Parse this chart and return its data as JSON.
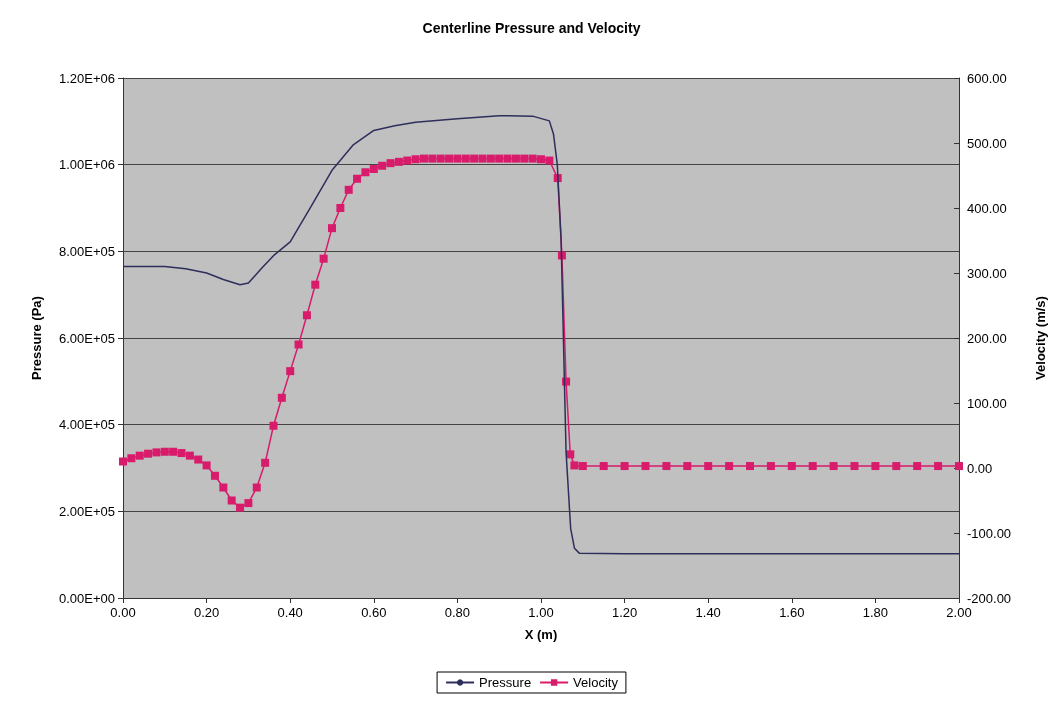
{
  "chart_data": {
    "type": "line",
    "title": "Centerline Pressure and Velocity",
    "xlabel": "X (m)",
    "ylabel": "Pressure (Pa)",
    "y2label": "Velocity (m/s)",
    "xlim": [
      0,
      2
    ],
    "xticks": [
      {
        "value": 0,
        "label": "0.00"
      },
      {
        "value": 0.2,
        "label": "0.20"
      },
      {
        "value": 0.4,
        "label": "0.40"
      },
      {
        "value": 0.6,
        "label": "0.60"
      },
      {
        "value": 0.8,
        "label": "0.80"
      },
      {
        "value": 1,
        "label": "1.00"
      },
      {
        "value": 1.2,
        "label": "1.20"
      },
      {
        "value": 1.4,
        "label": "1.40"
      },
      {
        "value": 1.6,
        "label": "1.60"
      },
      {
        "value": 1.8,
        "label": "1.80"
      },
      {
        "value": 2,
        "label": "2.00"
      }
    ],
    "ylim": [
      0,
      1200000
    ],
    "yticks": [
      {
        "value": 0,
        "label": "0.00E+00"
      },
      {
        "value": 200000,
        "label": "2.00E+05"
      },
      {
        "value": 400000,
        "label": "4.00E+05"
      },
      {
        "value": 600000,
        "label": "6.00E+05"
      },
      {
        "value": 800000,
        "label": "8.00E+05"
      },
      {
        "value": 1000000,
        "label": "1.00E+06"
      },
      {
        "value": 1200000,
        "label": "1.20E+06"
      }
    ],
    "y2lim": [
      -200,
      600
    ],
    "y2ticks": [
      {
        "value": -200,
        "label": "-200.00"
      },
      {
        "value": -100,
        "label": "-100.00"
      },
      {
        "value": 0,
        "label": "0.00"
      },
      {
        "value": 100,
        "label": "100.00"
      },
      {
        "value": 200,
        "label": "200.00"
      },
      {
        "value": 300,
        "label": "300.00"
      },
      {
        "value": 400,
        "label": "400.00"
      },
      {
        "value": 500,
        "label": "500.00"
      },
      {
        "value": 600,
        "label": "600.00"
      }
    ],
    "grid": "y",
    "legend": "bottom",
    "series": [
      {
        "name": "Pressure",
        "color": "#2e2e5c",
        "marker": "none",
        "x": [
          0,
          0.1,
          0.15,
          0.2,
          0.24,
          0.28,
          0.3,
          0.33,
          0.36,
          0.4,
          0.45,
          0.5,
          0.55,
          0.6,
          0.65,
          0.7,
          0.8,
          0.9,
          0.98,
          1.02,
          1.03,
          1.039,
          1.048,
          1.06,
          1.071,
          1.08,
          1.092,
          1.2,
          1.4,
          1.6,
          1.8,
          2
        ],
        "values": [
          765000,
          765000,
          760000,
          750000,
          735000,
          723000,
          727000,
          759000,
          790000,
          822000,
          904000,
          987000,
          1045000,
          1079000,
          1090000,
          1098000,
          1106000,
          1113000,
          1112000,
          1101000,
          1070000,
          1000000,
          830000,
          336000,
          160000,
          115000,
          103000,
          102000,
          102000,
          102000,
          102000,
          102000
        ]
      },
      {
        "name": "Velocity",
        "color": "#d81b6a",
        "marker": "square",
        "axis": "y2",
        "x": [
          0,
          0.02,
          0.04,
          0.06,
          0.08,
          0.1,
          0.12,
          0.14,
          0.16,
          0.18,
          0.2,
          0.22,
          0.24,
          0.26,
          0.28,
          0.3,
          0.32,
          0.34,
          0.36,
          0.38,
          0.4,
          0.42,
          0.44,
          0.46,
          0.48,
          0.5,
          0.52,
          0.54,
          0.56,
          0.58,
          0.6,
          0.62,
          0.64,
          0.66,
          0.68,
          0.7,
          0.72,
          0.74,
          0.76,
          0.78,
          0.8,
          0.82,
          0.84,
          0.86,
          0.88,
          0.9,
          0.92,
          0.94,
          0.96,
          0.98,
          1,
          1.02,
          1.04,
          1.05,
          1.06,
          1.07,
          1.08,
          1.1,
          1.15,
          1.2,
          1.25,
          1.3,
          1.35,
          1.4,
          1.45,
          1.5,
          1.55,
          1.6,
          1.65,
          1.7,
          1.75,
          1.8,
          1.85,
          1.9,
          1.95,
          2
        ],
        "values": [
          10,
          15,
          19,
          22,
          24,
          25,
          25,
          23,
          19,
          13,
          4,
          -12,
          -30,
          -50,
          -61,
          -54,
          -30,
          8,
          65,
          108,
          149,
          190,
          235,
          282,
          322,
          369,
          400,
          428,
          445,
          455,
          460,
          465,
          469,
          471,
          473,
          475,
          476,
          476,
          476,
          476,
          476,
          476,
          476,
          476,
          476,
          476,
          476,
          476,
          476,
          476,
          475,
          473,
          446,
          327,
          133,
          21,
          4,
          3,
          3,
          3,
          3,
          3,
          3,
          3,
          3,
          3,
          3,
          3,
          3,
          3,
          3,
          3,
          3,
          3,
          3,
          3
        ]
      }
    ]
  }
}
